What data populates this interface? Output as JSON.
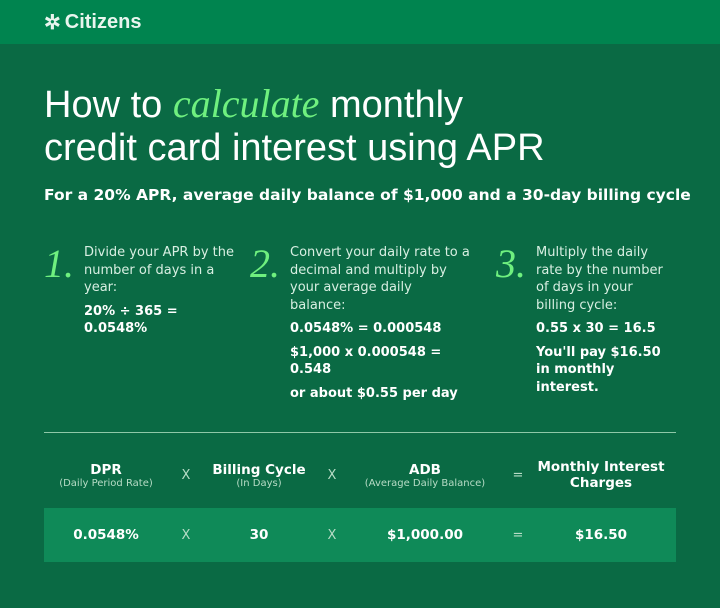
{
  "brand": {
    "name": "Citizens"
  },
  "title": {
    "before": "How to ",
    "highlight": "calculate",
    "after": " monthly",
    "line2": "credit card interest using APR"
  },
  "subtitle": "For a 20% APR, average daily balance of $1,000 and a 30-day billing cycle",
  "steps": [
    {
      "number": "1.",
      "text": "Divide your APR by the number of days in a year:",
      "calcs": [
        "20% ÷ 365 = 0.0548%"
      ]
    },
    {
      "number": "2.",
      "text": "Convert your daily rate to a decimal and multiply by your average daily balance:",
      "calcs": [
        "0.0548% = 0.000548",
        "$1,000 x 0.000548 = 0.548",
        "or about $0.55 per day"
      ]
    },
    {
      "number": "3.",
      "text": "Multiply the daily rate by the number of days in your billing cycle:",
      "calcs": [
        "0.55 x 30 = 16.5",
        "You'll pay $16.50 in monthly interest."
      ]
    }
  ],
  "formula": {
    "headers": [
      {
        "label": "DPR",
        "sub": "(Daily Period Rate)"
      },
      {
        "label": "Billing Cycle",
        "sub": "(In Days)"
      },
      {
        "label": "ADB",
        "sub": "(Average Daily Balance)"
      },
      {
        "label": "Monthly Interest Charges",
        "sub": ""
      }
    ],
    "operators": [
      "X",
      "X",
      "="
    ],
    "values": [
      "0.0548%",
      "30",
      "$1,000.00",
      "$16.50"
    ]
  },
  "colors": {
    "accent": "#6ff07f",
    "header": "#00844f",
    "background": "#0a6a44",
    "band": "#0f8a58"
  }
}
